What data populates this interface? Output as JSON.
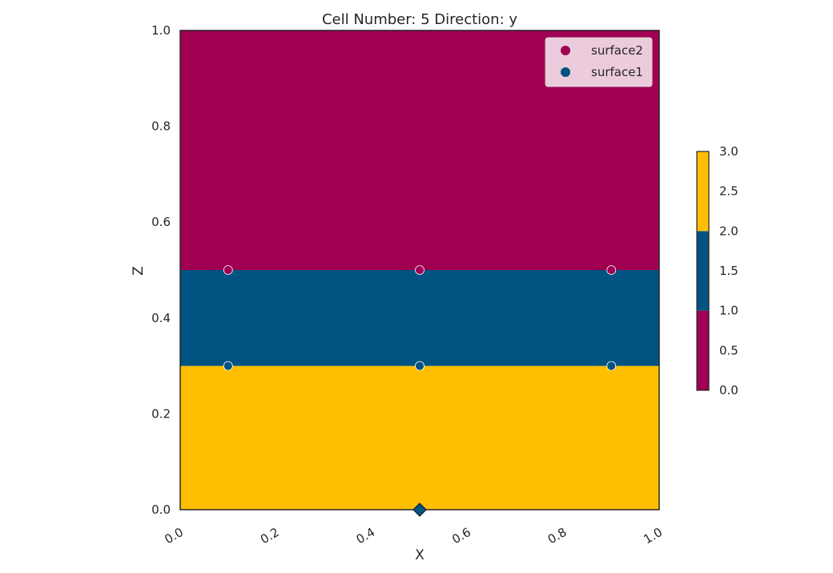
{
  "chart_data": {
    "type": "heatmap",
    "title": "Cell Number: 5 Direction: y",
    "xlabel": "X",
    "ylabel": "Z",
    "xlim": [
      0.0,
      1.0
    ],
    "ylim": [
      0.0,
      1.0
    ],
    "xticks": [
      "0.0",
      "0.2",
      "0.4",
      "0.6",
      "0.8",
      "1.0"
    ],
    "yticks": [
      "0.0",
      "0.2",
      "0.4",
      "0.6",
      "0.8",
      "1.0"
    ],
    "grid": false,
    "legend_position": "top-right",
    "regions": [
      {
        "z_from": 0.0,
        "z_to": 0.3,
        "value": 3,
        "color": "#ffbe00"
      },
      {
        "z_from": 0.3,
        "z_to": 0.5,
        "value": 2,
        "color": "#015482"
      },
      {
        "z_from": 0.5,
        "z_to": 1.0,
        "value": 1,
        "color": "#9f0052"
      }
    ],
    "series": [
      {
        "name": "surface2",
        "color": "#9f0052",
        "points": [
          {
            "x": 0.1,
            "z": 0.5
          },
          {
            "x": 0.5,
            "z": 0.5
          },
          {
            "x": 0.9,
            "z": 0.5
          }
        ]
      },
      {
        "name": "surface1",
        "color": "#015482",
        "points": [
          {
            "x": 0.1,
            "z": 0.3
          },
          {
            "x": 0.5,
            "z": 0.3
          },
          {
            "x": 0.9,
            "z": 0.3
          }
        ]
      }
    ],
    "orientation_marker": {
      "x": 0.5,
      "z": 0.0,
      "shape": "diamond",
      "color": "#015482"
    },
    "colorbar": {
      "range": [
        0.0,
        3.0
      ],
      "ticks": [
        "0.0",
        "0.5",
        "1.0",
        "1.5",
        "2.0",
        "2.5",
        "3.0"
      ],
      "bands": [
        {
          "from": 0.0,
          "to": 1.0,
          "color": "#9f0052"
        },
        {
          "from": 1.0,
          "to": 2.0,
          "color": "#015482"
        },
        {
          "from": 2.0,
          "to": 3.0,
          "color": "#ffbe00"
        }
      ]
    }
  }
}
